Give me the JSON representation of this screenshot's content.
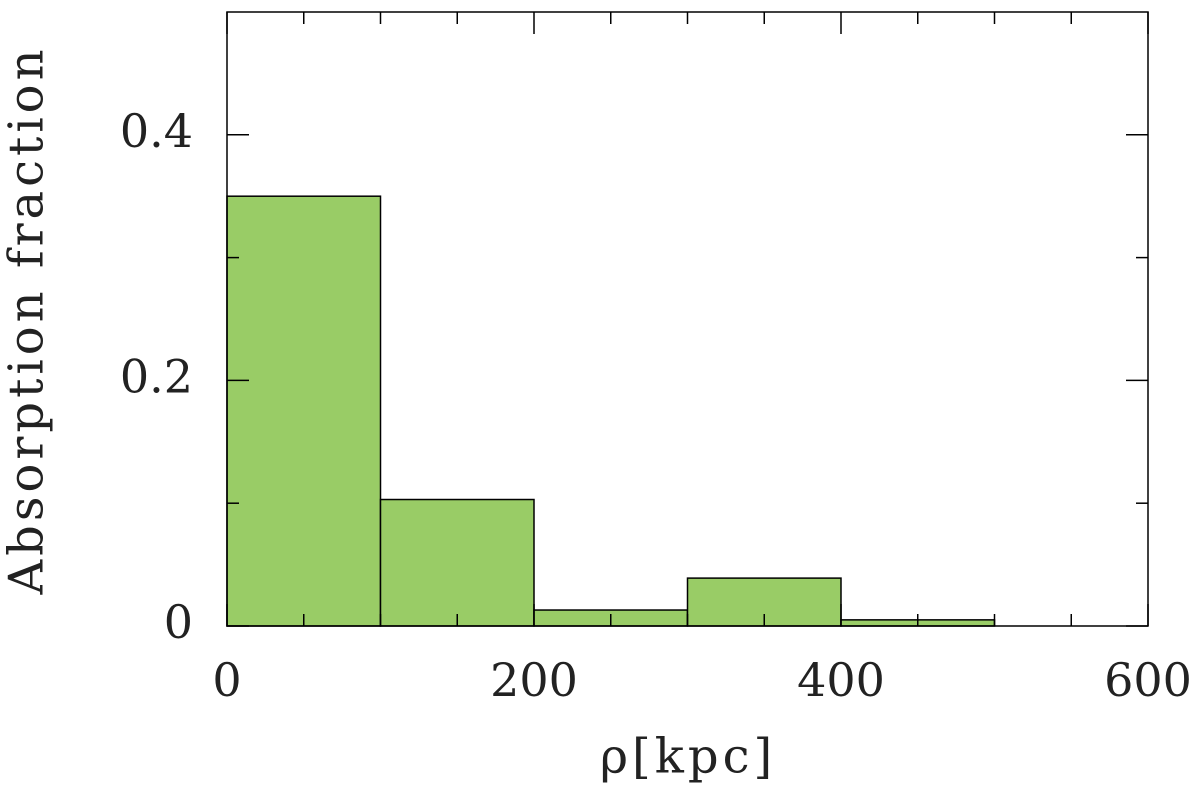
{
  "chart_data": {
    "type": "histogram",
    "xlabel": "ρ[kpc]",
    "ylabel": "Absorption fraction",
    "bins": [
      0,
      100,
      200,
      300,
      400,
      500
    ],
    "values": [
      0.35,
      0.103,
      0.013,
      0.039,
      0.005
    ],
    "color": "#99cc66",
    "xlim": [
      0,
      600
    ],
    "ylim": [
      0,
      0.5
    ],
    "xticks": [
      0,
      200,
      400,
      600
    ],
    "yticks": [
      0,
      0.2,
      0.4
    ],
    "xminorticks": [
      50,
      100,
      150,
      250,
      300,
      350,
      450,
      500,
      550
    ],
    "yminorticks": [
      0.1,
      0.3
    ],
    "grid": false
  }
}
